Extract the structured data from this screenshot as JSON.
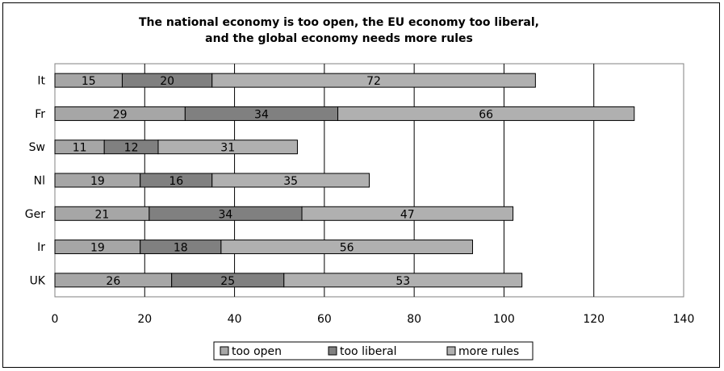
{
  "chart_data": {
    "type": "bar",
    "orientation": "horizontal",
    "stacked": true,
    "title_lines": [
      "The national economy is too open, the EU economy too liberal,",
      "and the global economy needs more rules"
    ],
    "categories": [
      "It",
      "Fr",
      "Sw",
      "Nl",
      "Ger",
      "Ir",
      "UK"
    ],
    "series": [
      {
        "name": "too open",
        "color": "#a6a6a6",
        "values": [
          15,
          29,
          11,
          19,
          21,
          19,
          26
        ]
      },
      {
        "name": "too liberal",
        "color": "#808080",
        "values": [
          20,
          34,
          12,
          16,
          34,
          18,
          25
        ]
      },
      {
        "name": "more rules",
        "color": "#b0b0b0",
        "values": [
          72,
          66,
          31,
          35,
          47,
          56,
          53
        ]
      }
    ],
    "x_ticks": [
      0,
      20,
      40,
      60,
      80,
      100,
      120,
      140
    ],
    "xlim": [
      0,
      140
    ],
    "grid": "vertical",
    "legend_position": "bottom"
  }
}
